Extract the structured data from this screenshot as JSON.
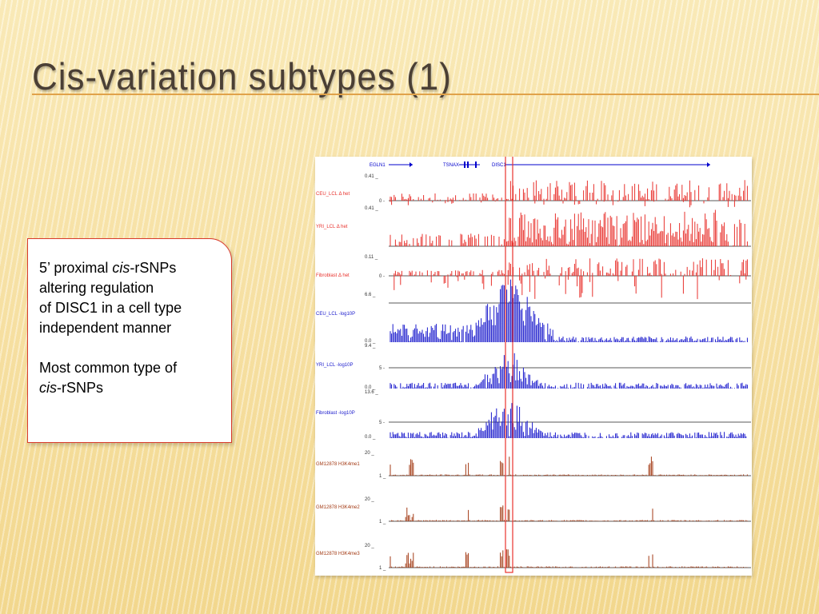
{
  "slide": {
    "title": "Cis-variation subtypes (1)"
  },
  "textbox": {
    "line1_pre": "5’ proximal ",
    "line1_em": "cis",
    "line1_post": "-rSNPs",
    "line2": "altering regulation",
    "line3": "of DISC1 in a cell type",
    "line4": "independent manner",
    "line5": "Most common type of",
    "line6_em": "cis",
    "line6_post": "-rSNPs"
  },
  "figure": {
    "genes": [
      "EGLN1",
      "TSNAX",
      "DISC1"
    ],
    "tracks": [
      {
        "label": "CEU_LCL Δ het",
        "color": "#e8322d",
        "top_tick": "0.41 _",
        "mid_tick": "0 -"
      },
      {
        "label": "YRI_LCL Δ het",
        "color": "#e8322d",
        "top_tick": "0.41 _",
        "mid_tick": ""
      },
      {
        "label": "Fibroblast Δ het",
        "color": "#e8322d",
        "top_tick": "0.11 _",
        "mid_tick": "0 -"
      },
      {
        "label": "CEU_LCL -log10P",
        "color": "#1a1acc",
        "top_tick": "6.6 _",
        "mid_tick": "",
        "bottom_tick": "0.0 _"
      },
      {
        "label": "YRI_LCL -log10P",
        "color": "#1a1acc",
        "top_tick": "9.4 _",
        "mid_tick": "5 -",
        "bottom_tick": "0.0 _"
      },
      {
        "label": "Fibroblast -log10P",
        "color": "#1a1acc",
        "top_tick": "13.6 _",
        "mid_tick": "5 -",
        "bottom_tick": "0.0 _"
      },
      {
        "label": "GM12878 H3K4me1",
        "color": "#a33a14",
        "top_tick": "20 _",
        "mid_tick": "1 _"
      },
      {
        "label": "GM12878 H3K4me2",
        "color": "#a33a14",
        "top_tick": "20 _",
        "mid_tick": "1 _"
      },
      {
        "label": "GM12878 H3K4me3",
        "color": "#a33a14",
        "top_tick": "20 _",
        "mid_tick": "1 _"
      }
    ],
    "highlight_color": "#e8322d"
  }
}
